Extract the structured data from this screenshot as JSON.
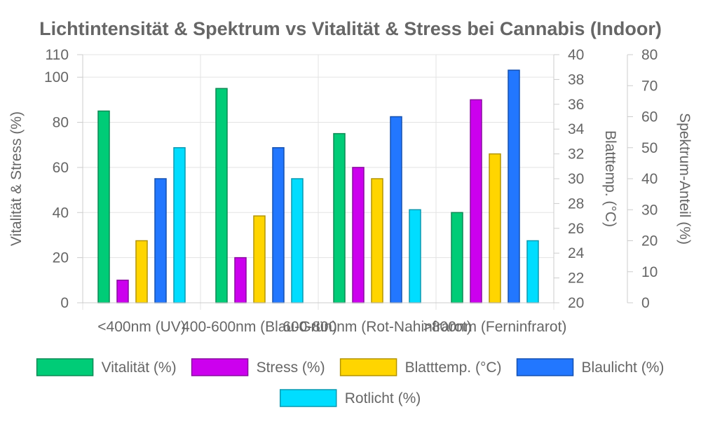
{
  "chart_data": {
    "type": "bar",
    "title": "Lichtintensität & Spektrum vs Vitalität & Stress bei Cannabis (Indoor)",
    "categories": [
      "<400nm (UV)",
      "400-600nm (Blau-Grün)",
      "600-800nm (Rot-Nahinfrarot)",
      ">800nm (Ferninfrarot)"
    ],
    "axes": {
      "y_left": {
        "label": "Vitalität & Stress (%)",
        "range": [
          0,
          110
        ],
        "ticks": [
          0,
          20,
          40,
          60,
          80,
          100,
          110
        ]
      },
      "y_mid": {
        "label": "Blatttemp. (°C)",
        "range": [
          20,
          40
        ],
        "ticks": [
          20,
          22,
          24,
          26,
          28,
          30,
          32,
          34,
          36,
          38,
          40
        ]
      },
      "y_right": {
        "label": "Spektrum-Anteil (%)",
        "range": [
          0,
          80
        ],
        "ticks": [
          0,
          10,
          20,
          30,
          40,
          50,
          60,
          70,
          80
        ]
      }
    },
    "series": [
      {
        "name": "Vitalität (%)",
        "axis": "y_left",
        "color": "#00cc77",
        "border": "#0b8a55",
        "values": [
          85,
          95,
          75,
          40
        ]
      },
      {
        "name": "Stress (%)",
        "axis": "y_left",
        "color": "#cc00ee",
        "border": "#8a0aa0",
        "values": [
          10,
          20,
          60,
          90
        ]
      },
      {
        "name": "Blatttemp. (°C)",
        "axis": "y_mid",
        "color": "#ffd500",
        "border": "#b39400",
        "values": [
          25,
          27,
          30,
          32
        ]
      },
      {
        "name": "Blaulicht (%)",
        "axis": "y_right",
        "color": "#2277ff",
        "border": "#1450b0",
        "values": [
          40,
          50,
          60,
          75
        ]
      },
      {
        "name": "Rotlicht (%)",
        "axis": "y_right",
        "color": "#00ddff",
        "border": "#0899b0",
        "values": [
          50,
          40,
          30,
          20
        ]
      }
    ],
    "grid": true,
    "legend_position": "bottom"
  }
}
